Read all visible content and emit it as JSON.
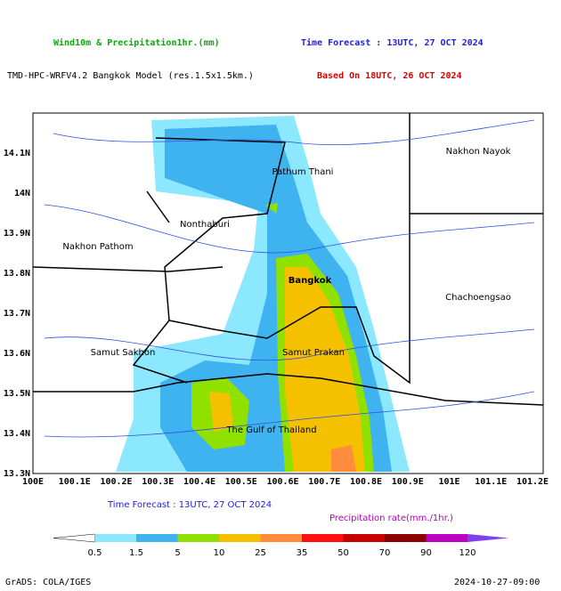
{
  "header": {
    "title": "Wind10m & Precipitation1hr.(mm)",
    "forecast": "Time Forecast : 13UTC, 27 OCT 2024",
    "model": "TMD-HPC-WRFV4.2 Bangkok Model (res.1.5x1.5km.)",
    "based": "Based On 18UTC, 26 OCT 2024"
  },
  "map": {
    "y_labels": [
      "14.1N",
      "14N",
      "13.9N",
      "13.8N",
      "13.7N",
      "13.6N",
      "13.5N",
      "13.4N",
      "13.3N"
    ],
    "x_labels": [
      "100E",
      "100.1E",
      "100.2E",
      "100.3E",
      "100.4E",
      "100.5E",
      "100.6E",
      "100.7E",
      "100.8E",
      "100.9E",
      "101E",
      "101.1E",
      "101.2E"
    ],
    "places": [
      "Pathum Thani",
      "Nonthaburi",
      "Nakhon Pathom",
      "Bangkok",
      "Chachoengsao",
      "Samut Sakhon",
      "Samut Prakan",
      "Nakhon Nayok",
      "The Gulf of Thailand"
    ]
  },
  "footer": {
    "forecast": "Time Forecast : 13UTC, 27 OCT 2024",
    "unit": "Precipitation rate(mm./1hr.)",
    "colorbar_labels": [
      0.5,
      1.5,
      5,
      10,
      25,
      35,
      50,
      70,
      90,
      120
    ],
    "colorbar_colors": [
      "#ffffff",
      "#8be8ff",
      "#3fb2f0",
      "#90e000",
      "#f5c000",
      "#ff8c3c",
      "#ff1010",
      "#c80000",
      "#8c0000",
      "#c000c0",
      "#8040f0"
    ],
    "credit": "GrADS: COLA/IGES",
    "timestamp": "2024-10-27-09:00"
  }
}
